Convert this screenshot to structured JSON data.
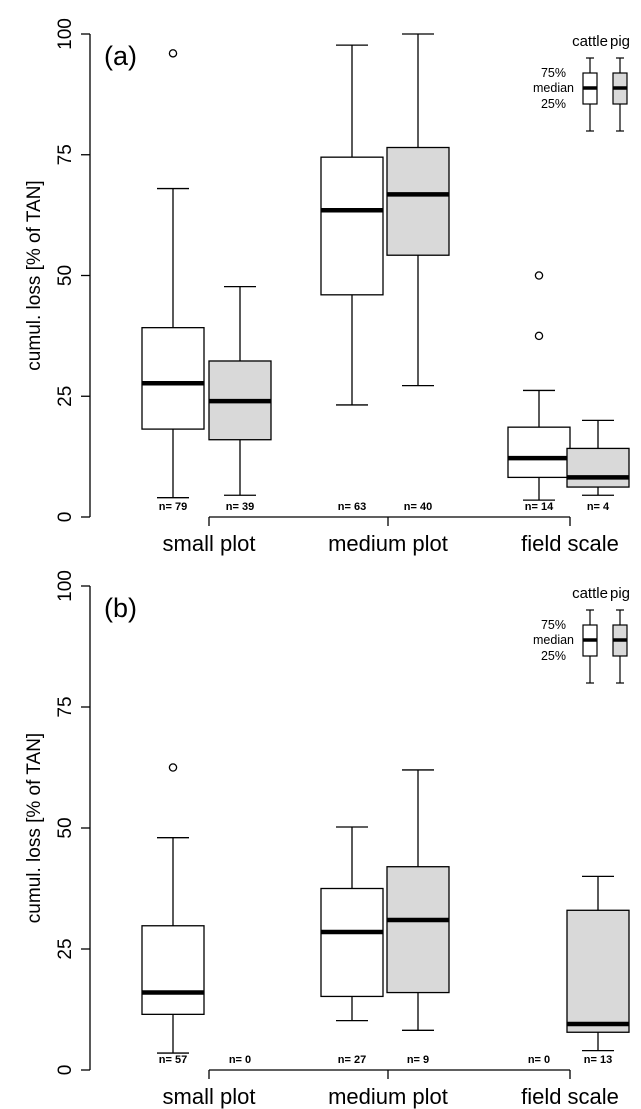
{
  "chart_data": [
    {
      "type": "box",
      "panel_label": "(a)",
      "ylabel": "cumul. loss [% of TAN]",
      "ylim": [
        0,
        100
      ],
      "yticks": [
        0,
        25,
        50,
        75,
        100
      ],
      "groups": [
        "small plot",
        "medium plot",
        "field scale"
      ],
      "series": [
        {
          "name": "cattle",
          "color": "#ffffff"
        },
        {
          "name": "pig",
          "color": "#d9d9d9"
        }
      ],
      "boxes": [
        {
          "group": "small plot",
          "series": "cattle",
          "n_label": "n= 79",
          "whisker_low": 4,
          "q1": 18.2,
          "median": 27.7,
          "q3": 39.2,
          "whisker_high": 68,
          "outliers": [
            96
          ]
        },
        {
          "group": "small plot",
          "series": "pig",
          "n_label": "n= 39",
          "whisker_low": 4.5,
          "q1": 16,
          "median": 24,
          "q3": 32.3,
          "whisker_high": 47.7,
          "outliers": []
        },
        {
          "group": "medium plot",
          "series": "cattle",
          "n_label": "n= 63",
          "whisker_low": 23.2,
          "q1": 46,
          "median": 63.5,
          "q3": 74.5,
          "whisker_high": 97.7,
          "outliers": []
        },
        {
          "group": "medium plot",
          "series": "pig",
          "n_label": "n= 40",
          "whisker_low": 27.2,
          "q1": 54.2,
          "median": 66.8,
          "q3": 76.5,
          "whisker_high": 100,
          "outliers": []
        },
        {
          "group": "field scale",
          "series": "cattle",
          "n_label": "n= 14",
          "whisker_low": 3.5,
          "q1": 8.2,
          "median": 12.2,
          "q3": 18.6,
          "whisker_high": 26.2,
          "outliers": [
            37.5,
            50
          ]
        },
        {
          "group": "field scale",
          "series": "pig",
          "n_label": "n= 4",
          "whisker_low": 4.5,
          "q1": 6.2,
          "median": 8.2,
          "q3": 14.2,
          "whisker_high": 20,
          "outliers": []
        }
      ],
      "legend": {
        "header_cattle": "cattle",
        "header_pig": "pig",
        "q75": "75%",
        "median": "median",
        "q25": "25%"
      }
    },
    {
      "type": "box",
      "panel_label": "(b)",
      "ylabel": "cumul. loss [% of TAN]",
      "ylim": [
        0,
        100
      ],
      "yticks": [
        0,
        25,
        50,
        75,
        100
      ],
      "groups": [
        "small plot",
        "medium plot",
        "field scale"
      ],
      "series": [
        {
          "name": "cattle",
          "color": "#ffffff"
        },
        {
          "name": "pig",
          "color": "#d9d9d9"
        }
      ],
      "boxes": [
        {
          "group": "small plot",
          "series": "cattle",
          "n_label": "n= 57",
          "whisker_low": 3.5,
          "q1": 11.5,
          "median": 16,
          "q3": 29.8,
          "whisker_high": 48,
          "outliers": [
            62.5
          ]
        },
        {
          "group": "small plot",
          "series": "pig",
          "n_label": "n= 0"
        },
        {
          "group": "medium plot",
          "series": "cattle",
          "n_label": "n= 27",
          "whisker_low": 10.2,
          "q1": 15.2,
          "median": 28.5,
          "q3": 37.5,
          "whisker_high": 50.2,
          "outliers": []
        },
        {
          "group": "medium plot",
          "series": "pig",
          "n_label": "n= 9",
          "whisker_low": 8.2,
          "q1": 16,
          "median": 31,
          "q3": 42,
          "whisker_high": 62,
          "outliers": []
        },
        {
          "group": "field scale",
          "series": "cattle",
          "n_label": "n= 0"
        },
        {
          "group": "field scale",
          "series": "pig",
          "n_label": "n= 13",
          "whisker_low": 4,
          "q1": 7.8,
          "median": 9.5,
          "q3": 33,
          "whisker_high": 40,
          "outliers": []
        }
      ],
      "legend": {
        "header_cattle": "cattle",
        "header_pig": "pig",
        "q75": "75%",
        "median": "median",
        "q25": "25%"
      }
    }
  ]
}
